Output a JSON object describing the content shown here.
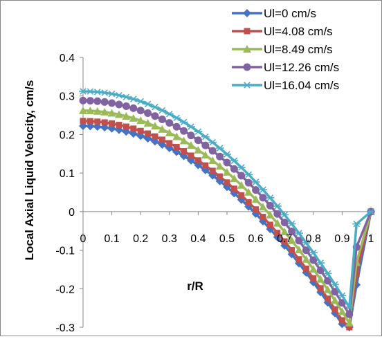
{
  "chart_data": {
    "type": "line",
    "title": "",
    "xlabel": "r/R",
    "ylabel": "Local Axial Liquid Velocity, cm/s",
    "xlim": [
      0,
      1
    ],
    "ylim": [
      -0.3,
      0.4
    ],
    "x_ticks": [
      "0",
      "0.1",
      "0.2",
      "0.3",
      "0.4",
      "0.5",
      "0.6",
      "0.7",
      "0.8",
      "0.9",
      "1"
    ],
    "y_ticks": [
      "0.4",
      "0.3",
      "0.2",
      "0.1",
      "0",
      "-0.1",
      "-0.2",
      "-0.3"
    ],
    "grid": false,
    "legend": "top-right",
    "series": [
      {
        "name": "Ul=0 cm/s",
        "color": "#4472C4",
        "marker": "diamond",
        "x": [
          0,
          0.025,
          0.05,
          0.075,
          0.1,
          0.125,
          0.15,
          0.175,
          0.2,
          0.225,
          0.25,
          0.275,
          0.3,
          0.325,
          0.35,
          0.375,
          0.4,
          0.425,
          0.45,
          0.475,
          0.5,
          0.525,
          0.55,
          0.575,
          0.6,
          0.625,
          0.65,
          0.675,
          0.7,
          0.725,
          0.75,
          0.775,
          0.8,
          0.825,
          0.85,
          0.875,
          0.9,
          0.925,
          0.95,
          1
        ],
        "y": [
          0.222,
          0.2216,
          0.2204,
          0.2184,
          0.2155,
          0.2119,
          0.2075,
          0.2024,
          0.1964,
          0.1897,
          0.1822,
          0.1739,
          0.1648,
          0.1549,
          0.1443,
          0.1328,
          0.1206,
          0.1076,
          0.0938,
          0.0792,
          0.0638,
          0.0476,
          0.0306,
          0.0129,
          -0.0057,
          -0.0251,
          -0.0453,
          -0.0663,
          -0.0881,
          -0.1107,
          -0.1341,
          -0.1583,
          -0.1834,
          -0.2092,
          -0.2359,
          -0.2634,
          -0.2917,
          -0.3208,
          -0.19,
          0.0
        ]
      },
      {
        "name": "Ul=4.08 cm/s",
        "color": "#C0504D",
        "marker": "square",
        "x": [
          0,
          0.025,
          0.05,
          0.075,
          0.1,
          0.125,
          0.15,
          0.175,
          0.2,
          0.225,
          0.25,
          0.275,
          0.3,
          0.325,
          0.35,
          0.375,
          0.4,
          0.425,
          0.45,
          0.475,
          0.5,
          0.525,
          0.55,
          0.575,
          0.6,
          0.625,
          0.65,
          0.675,
          0.7,
          0.725,
          0.75,
          0.775,
          0.8,
          0.825,
          0.85,
          0.875,
          0.9,
          0.925,
          0.95,
          1
        ],
        "y": [
          0.235,
          0.2346,
          0.2334,
          0.2314,
          0.2285,
          0.2249,
          0.2205,
          0.2153,
          0.2093,
          0.2025,
          0.195,
          0.1866,
          0.1774,
          0.1675,
          0.1567,
          0.1452,
          0.1329,
          0.1197,
          0.1058,
          0.0911,
          0.0756,
          0.0593,
          0.0422,
          0.0243,
          0.0056,
          -0.0139,
          -0.0342,
          -0.0553,
          -0.0773,
          -0.1,
          -0.1236,
          -0.148,
          -0.1732,
          -0.1991,
          -0.2259,
          -0.2536,
          -0.282,
          -0.3113,
          -0.162,
          0.0
        ]
      },
      {
        "name": "Ul=8.49 cm/s",
        "color": "#9BBB59",
        "marker": "triangle",
        "x": [
          0,
          0.025,
          0.05,
          0.075,
          0.1,
          0.125,
          0.15,
          0.175,
          0.2,
          0.225,
          0.25,
          0.275,
          0.3,
          0.325,
          0.35,
          0.375,
          0.4,
          0.425,
          0.45,
          0.475,
          0.5,
          0.525,
          0.55,
          0.575,
          0.6,
          0.625,
          0.65,
          0.675,
          0.7,
          0.725,
          0.75,
          0.775,
          0.8,
          0.825,
          0.85,
          0.875,
          0.9,
          0.925,
          0.95,
          1
        ],
        "y": [
          0.262,
          0.2616,
          0.2604,
          0.2584,
          0.2555,
          0.2519,
          0.2475,
          0.2423,
          0.2363,
          0.2295,
          0.222,
          0.2136,
          0.2044,
          0.1945,
          0.1837,
          0.1721,
          0.1597,
          0.1466,
          0.1326,
          0.1178,
          0.1022,
          0.0857,
          0.0685,
          0.0504,
          0.0315,
          0.0118,
          -0.0088,
          -0.0301,
          -0.0523,
          -0.0753,
          -0.0992,
          -0.1238,
          -0.1493,
          -0.1755,
          -0.2027,
          -0.2306,
          -0.2594,
          -0.289,
          -0.132,
          0.0
        ]
      },
      {
        "name": "Ul=12.26 cm/s",
        "color": "#8064A2",
        "marker": "circle",
        "x": [
          0,
          0.025,
          0.05,
          0.075,
          0.1,
          0.125,
          0.15,
          0.175,
          0.2,
          0.225,
          0.25,
          0.275,
          0.3,
          0.325,
          0.35,
          0.375,
          0.4,
          0.425,
          0.45,
          0.475,
          0.5,
          0.525,
          0.55,
          0.575,
          0.6,
          0.625,
          0.65,
          0.675,
          0.7,
          0.725,
          0.75,
          0.775,
          0.8,
          0.825,
          0.85,
          0.875,
          0.9,
          0.925,
          0.95,
          1
        ],
        "y": [
          0.288,
          0.2876,
          0.2864,
          0.2844,
          0.2815,
          0.2779,
          0.2735,
          0.2683,
          0.2623,
          0.2555,
          0.2478,
          0.2394,
          0.2302,
          0.2201,
          0.2093,
          0.1976,
          0.1851,
          0.1718,
          0.1577,
          0.1428,
          0.1271,
          0.1105,
          0.0932,
          0.075,
          0.056,
          0.0362,
          0.0155,
          -0.006,
          -0.0283,
          -0.0515,
          -0.0755,
          -0.1003,
          -0.1258,
          -0.1523,
          -0.1796,
          -0.2077,
          -0.2367,
          -0.2664,
          -0.092,
          0.0
        ]
      },
      {
        "name": "Ul=16.04 cm/s",
        "color": "#4BACC6",
        "marker": "star",
        "x": [
          0,
          0.025,
          0.05,
          0.075,
          0.1,
          0.125,
          0.15,
          0.175,
          0.2,
          0.225,
          0.25,
          0.275,
          0.3,
          0.325,
          0.35,
          0.375,
          0.4,
          0.425,
          0.45,
          0.475,
          0.5,
          0.525,
          0.55,
          0.575,
          0.6,
          0.625,
          0.65,
          0.675,
          0.7,
          0.725,
          0.75,
          0.775,
          0.8,
          0.825,
          0.85,
          0.875,
          0.9,
          0.925,
          0.95,
          1
        ],
        "y": [
          0.312,
          0.3116,
          0.3104,
          0.3084,
          0.3055,
          0.3018,
          0.2973,
          0.292,
          0.2859,
          0.279,
          0.2712,
          0.2627,
          0.2533,
          0.2431,
          0.2321,
          0.2203,
          0.2076,
          0.1941,
          0.1798,
          0.1647,
          0.1488,
          0.132,
          0.1145,
          0.0961,
          0.0768,
          0.0568,
          0.0359,
          0.0142,
          -0.0083,
          -0.0317,
          -0.0559,
          -0.0809,
          -0.1066,
          -0.1332,
          -0.1607,
          -0.1889,
          -0.2179,
          -0.2478,
          -0.032,
          0.0
        ]
      }
    ]
  }
}
